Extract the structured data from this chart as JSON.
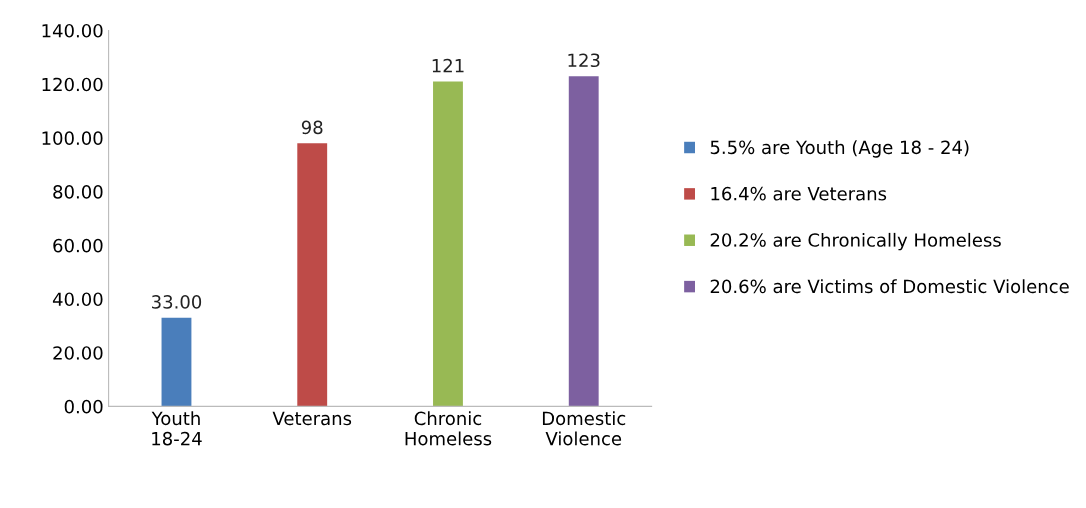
{
  "chart_data": {
    "type": "bar",
    "stacked": true,
    "categories": [
      "Youth 18-24",
      "Veterans",
      "Chronic Homeless",
      "Domestic Violence"
    ],
    "series": [
      {
        "name": "5.5% are Youth (Age 18 - 24)",
        "color": "#4a7ebb",
        "values": [
          33,
          null,
          null,
          null
        ],
        "value_labels": [
          "33.00",
          null,
          null,
          null
        ]
      },
      {
        "name": "16.4% are Veterans",
        "color": "#be4b48",
        "values": [
          null,
          98,
          null,
          null
        ],
        "value_labels": [
          null,
          "98",
          null,
          null
        ]
      },
      {
        "name": "20.2% are Chronically Homeless",
        "color": "#98b954",
        "values": [
          null,
          null,
          121,
          null
        ],
        "value_labels": [
          null,
          null,
          "121",
          null
        ]
      },
      {
        "name": "20.6% are Victims of Domestic Violence",
        "color": "#7d60a0",
        "values": [
          null,
          null,
          null,
          123
        ],
        "value_labels": [
          null,
          null,
          null,
          "123"
        ]
      }
    ],
    "ylim": [
      0,
      140
    ],
    "yticks": [
      {
        "value": 0,
        "label": "0.00"
      },
      {
        "value": 20,
        "label": "20.00"
      },
      {
        "value": 40,
        "label": "40.00"
      },
      {
        "value": 60,
        "label": "60.00"
      },
      {
        "value": 80,
        "label": "80.00"
      },
      {
        "value": 100,
        "label": "100.00"
      },
      {
        "value": 120,
        "label": "120.00"
      },
      {
        "value": 140,
        "label": "140.00"
      }
    ],
    "grid": false,
    "legend": "right"
  }
}
